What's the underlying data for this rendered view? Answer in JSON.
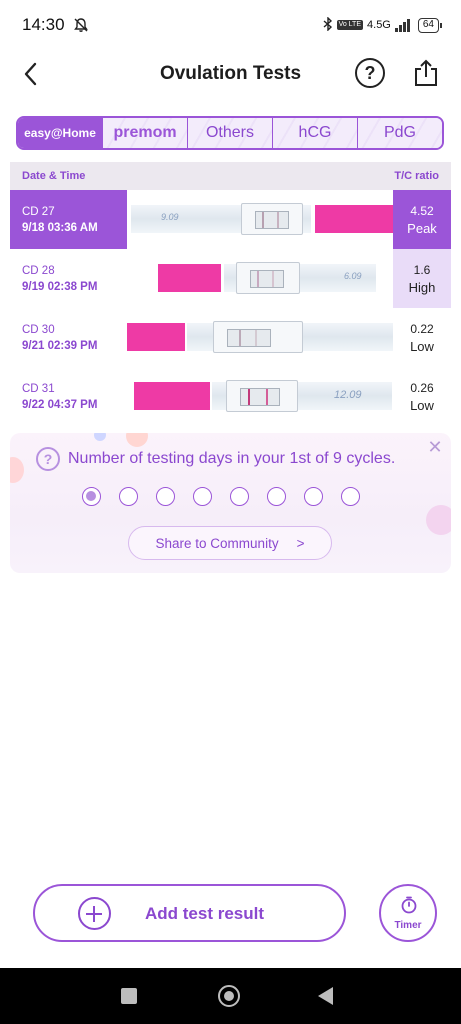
{
  "status_bar": {
    "time": "14:30",
    "network": "4.5G",
    "volte": "Vo LTE",
    "battery": "64"
  },
  "header": {
    "title": "Ovulation Tests",
    "help_symbol": "?"
  },
  "brand_tabs": [
    {
      "label": "easy@Home",
      "active": true
    },
    {
      "label": "premom",
      "active": false
    },
    {
      "label": "Others",
      "active": false
    },
    {
      "label": "hCG",
      "active": false
    },
    {
      "label": "PdG",
      "active": false
    }
  ],
  "table": {
    "col_date": "Date & Time",
    "col_ratio": "T/C ratio",
    "rows": [
      {
        "cd": "CD 27",
        "datetime": "9/18   03:36 AM",
        "ratio": "4.52",
        "level": "Peak",
        "strip_note": "9.09"
      },
      {
        "cd": "CD 28",
        "datetime": "9/19   02:38 PM",
        "ratio": "1.6",
        "level": "High",
        "strip_note": "6.09"
      },
      {
        "cd": "CD 30",
        "datetime": "9/21   02:39 PM",
        "ratio": "0.22",
        "level": "Low",
        "strip_note": ""
      },
      {
        "cd": "CD 31",
        "datetime": "9/22   04:37 PM",
        "ratio": "0.26",
        "level": "Low",
        "strip_note": "12.09"
      }
    ]
  },
  "cycle_card": {
    "question_symbol": "?",
    "text": "Number of testing days in your 1st of 9 cycles.",
    "close_symbol": "✕",
    "dots_total": 8,
    "dots_filled": 1,
    "share_label": "Share to Community",
    "share_arrow": ">"
  },
  "bottom": {
    "add_label": "Add test result",
    "timer_label": "Timer"
  },
  "colors": {
    "accent": "#9b55d8",
    "pink_strip": "#ee3aa5",
    "high_bg": "#e9dcf8"
  }
}
